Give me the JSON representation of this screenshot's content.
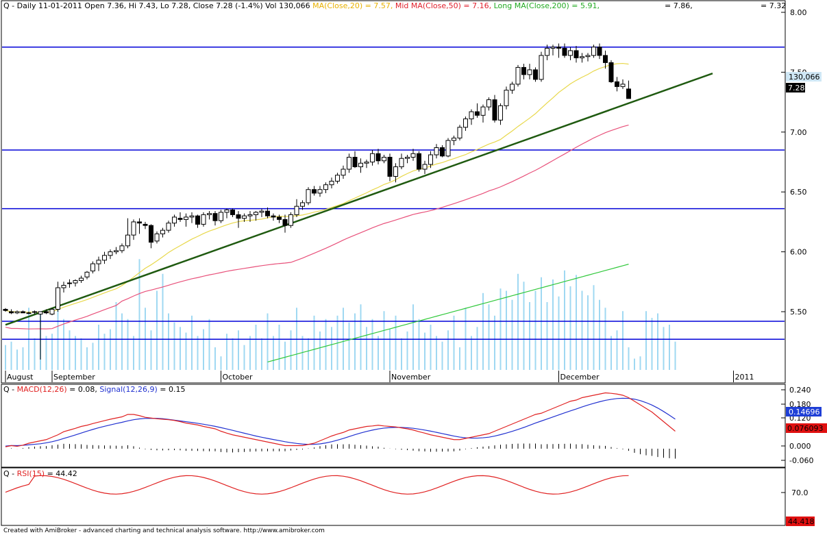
{
  "colors": {
    "price_bg": "#ffffff",
    "candle_up": "#ffffff",
    "candle_down": "#000000",
    "volume": "#9fd8f2",
    "ma20": "#e8d84a",
    "ma50": "#e8507a",
    "ma200": "#2fc83a",
    "trend": "#1f5a10",
    "hline": "#0000d8",
    "macd": "#e02020",
    "signal": "#2030d0",
    "rsi": "#e02020",
    "title_ma": "#e8b100",
    "title_mid": "#e0202c",
    "title_long": "#22aa22",
    "tag_signal_bg": "#1f3fd6",
    "tag_macd_bg": "#e01010",
    "tag_rsi_bg": "#e01010",
    "tag_last_bg": "#000000",
    "tag_vol_bg": "#cfe7f5"
  },
  "header": {
    "main_prefix": "Q - Daily 11-01-2011 Open 7.36, Hi 7.43, Lo 7.28, Close 7.28 (-1.4%) Vol 130,066 ",
    "ma_label": "MA(Close,20) = 7.57,",
    "mid_label": " Mid MA(Close,50) = 7.16,",
    "long_label": " Long MA(Close,200) = 5.91,",
    "mid_value": "= 7.86,",
    "right_value": "= 7.32"
  },
  "macd_header": {
    "prefix": "Q - ",
    "macd_label": "MACD(12,26)",
    "mid": " = 0.08, ",
    "signal_label": "Signal(12,26,9)",
    "suffix": " = 0.15"
  },
  "rsi_header": {
    "prefix": "Q - ",
    "rsi_label": "RSI(15)",
    "suffix": " = 44.42"
  },
  "footer": "Created with AmiBroker - advanced charting and technical analysis software. http://www.amibroker.com",
  "tags": {
    "volume": "130,066",
    "last": "7.28",
    "signal": "0.14696",
    "macd": "0.076093",
    "rsi": "44.418"
  },
  "chart_data": {
    "type": "candlestick",
    "price_axis": {
      "min": 5.0,
      "max": 8.0,
      "ticks": [
        "8.00",
        "7.50",
        "7.00",
        "6.50",
        "6.00",
        "5.50"
      ]
    },
    "month_labels": [
      {
        "label": "August",
        "index": 0
      },
      {
        "label": "September",
        "index": 8
      },
      {
        "label": "October",
        "index": 37
      },
      {
        "label": "November",
        "index": 66
      },
      {
        "label": "December",
        "index": 95
      },
      {
        "label": "2011",
        "index": 125
      }
    ],
    "horizontal_levels": [
      7.71,
      6.85,
      6.36,
      5.42,
      5.27
    ],
    "trendline": {
      "from": [
        0,
        5.39
      ],
      "to": [
        136,
        7.49
      ]
    },
    "candles": [
      [
        5.52,
        5.53,
        5.5,
        5.51
      ],
      [
        5.5,
        5.52,
        5.48,
        5.49
      ],
      [
        5.49,
        5.51,
        5.48,
        5.5
      ],
      [
        5.5,
        5.51,
        5.49,
        5.49
      ],
      [
        5.49,
        5.5,
        5.48,
        5.49
      ],
      [
        5.5,
        5.51,
        5.48,
        5.5
      ],
      [
        5.48,
        5.5,
        5.1,
        5.5
      ],
      [
        5.5,
        5.52,
        5.48,
        5.49
      ],
      [
        5.48,
        5.53,
        5.47,
        5.52
      ],
      [
        5.52,
        5.75,
        5.5,
        5.7
      ],
      [
        5.7,
        5.75,
        5.66,
        5.72
      ],
      [
        5.74,
        5.77,
        5.7,
        5.74
      ],
      [
        5.74,
        5.77,
        5.71,
        5.76
      ],
      [
        5.76,
        5.8,
        5.74,
        5.78
      ],
      [
        5.79,
        5.84,
        5.77,
        5.83
      ],
      [
        5.84,
        5.92,
        5.82,
        5.9
      ],
      [
        5.9,
        5.96,
        5.84,
        5.93
      ],
      [
        5.93,
        6.0,
        5.9,
        5.97
      ],
      [
        5.97,
        6.02,
        5.94,
        6.0
      ],
      [
        6.0,
        6.04,
        5.98,
        6.01
      ],
      [
        6.01,
        6.07,
        5.99,
        6.05
      ],
      [
        6.05,
        6.28,
        6.03,
        6.14
      ],
      [
        6.14,
        6.27,
        6.1,
        6.25
      ],
      [
        6.25,
        6.28,
        6.15,
        6.24
      ],
      [
        6.23,
        6.25,
        6.19,
        6.22
      ],
      [
        6.22,
        6.23,
        6.03,
        6.08
      ],
      [
        6.09,
        6.17,
        6.07,
        6.15
      ],
      [
        6.15,
        6.2,
        6.12,
        6.18
      ],
      [
        6.18,
        6.26,
        6.16,
        6.24
      ],
      [
        6.24,
        6.31,
        6.21,
        6.29
      ],
      [
        6.28,
        6.33,
        6.25,
        6.27
      ],
      [
        6.27,
        6.32,
        6.21,
        6.29
      ],
      [
        6.29,
        6.33,
        6.24,
        6.3
      ],
      [
        6.3,
        6.31,
        6.2,
        6.23
      ],
      [
        6.23,
        6.33,
        6.21,
        6.31
      ],
      [
        6.31,
        6.34,
        6.27,
        6.32
      ],
      [
        6.32,
        6.34,
        6.22,
        6.26
      ],
      [
        6.26,
        6.35,
        6.24,
        6.33
      ],
      [
        6.33,
        6.36,
        6.28,
        6.35
      ],
      [
        6.35,
        6.36,
        6.29,
        6.31
      ],
      [
        6.31,
        6.34,
        6.2,
        6.28
      ],
      [
        6.28,
        6.32,
        6.25,
        6.3
      ],
      [
        6.3,
        6.34,
        6.25,
        6.31
      ],
      [
        6.31,
        6.34,
        6.26,
        6.33
      ],
      [
        6.33,
        6.36,
        6.29,
        6.34
      ],
      [
        6.34,
        6.37,
        6.28,
        6.3
      ],
      [
        6.3,
        6.32,
        6.26,
        6.29
      ],
      [
        6.29,
        6.31,
        6.24,
        6.27
      ],
      [
        6.27,
        6.31,
        6.16,
        6.22
      ],
      [
        6.22,
        6.33,
        6.2,
        6.31
      ],
      [
        6.31,
        6.44,
        6.29,
        6.38
      ],
      [
        6.38,
        6.43,
        6.35,
        6.41
      ],
      [
        6.41,
        6.54,
        6.39,
        6.52
      ],
      [
        6.52,
        6.55,
        6.47,
        6.49
      ],
      [
        6.49,
        6.55,
        6.46,
        6.52
      ],
      [
        6.52,
        6.58,
        6.49,
        6.56
      ],
      [
        6.56,
        6.62,
        6.53,
        6.59
      ],
      [
        6.59,
        6.66,
        6.57,
        6.64
      ],
      [
        6.64,
        6.72,
        6.61,
        6.69
      ],
      [
        6.69,
        6.82,
        6.66,
        6.79
      ],
      [
        6.79,
        6.84,
        6.7,
        6.71
      ],
      [
        6.71,
        6.78,
        6.66,
        6.74
      ],
      [
        6.74,
        6.77,
        6.7,
        6.75
      ],
      [
        6.75,
        6.85,
        6.72,
        6.82
      ],
      [
        6.82,
        6.86,
        6.73,
        6.76
      ],
      [
        6.76,
        6.81,
        6.74,
        6.79
      ],
      [
        6.79,
        6.82,
        6.59,
        6.63
      ],
      [
        6.63,
        6.74,
        6.58,
        6.71
      ],
      [
        6.71,
        6.82,
        6.69,
        6.78
      ],
      [
        6.78,
        6.81,
        6.74,
        6.79
      ],
      [
        6.79,
        6.86,
        6.76,
        6.82
      ],
      [
        6.82,
        6.84,
        6.67,
        6.69
      ],
      [
        6.69,
        6.76,
        6.65,
        6.73
      ],
      [
        6.73,
        6.84,
        6.7,
        6.81
      ],
      [
        6.81,
        6.9,
        6.78,
        6.87
      ],
      [
        6.87,
        6.89,
        6.79,
        6.8
      ],
      [
        6.8,
        6.95,
        6.79,
        6.93
      ],
      [
        6.93,
        6.97,
        6.89,
        6.95
      ],
      [
        6.95,
        7.06,
        6.93,
        7.04
      ],
      [
        7.04,
        7.13,
        7.01,
        7.11
      ],
      [
        7.11,
        7.19,
        7.06,
        7.17
      ],
      [
        7.17,
        7.24,
        7.12,
        7.14
      ],
      [
        7.14,
        7.23,
        7.08,
        7.21
      ],
      [
        7.21,
        7.29,
        7.18,
        7.27
      ],
      [
        7.27,
        7.31,
        7.08,
        7.1
      ],
      [
        7.1,
        7.24,
        7.06,
        7.22
      ],
      [
        7.22,
        7.38,
        7.19,
        7.35
      ],
      [
        7.35,
        7.42,
        7.32,
        7.4
      ],
      [
        7.4,
        7.56,
        7.38,
        7.54
      ],
      [
        7.54,
        7.57,
        7.44,
        7.48
      ],
      [
        7.48,
        7.57,
        7.44,
        7.52
      ],
      [
        7.52,
        7.54,
        7.42,
        7.44
      ],
      [
        7.44,
        7.67,
        7.42,
        7.64
      ],
      [
        7.64,
        7.73,
        7.6,
        7.7
      ],
      [
        7.7,
        7.73,
        7.64,
        7.71
      ],
      [
        7.71,
        7.74,
        7.62,
        7.7
      ],
      [
        7.7,
        7.74,
        7.62,
        7.64
      ],
      [
        7.64,
        7.71,
        7.6,
        7.68
      ],
      [
        7.68,
        7.72,
        7.58,
        7.62
      ],
      [
        7.62,
        7.66,
        7.58,
        7.63
      ],
      [
        7.63,
        7.66,
        7.59,
        7.64
      ],
      [
        7.64,
        7.73,
        7.62,
        7.71
      ],
      [
        7.71,
        7.74,
        7.61,
        7.64
      ],
      [
        7.64,
        7.68,
        7.53,
        7.58
      ],
      [
        7.58,
        7.6,
        7.41,
        7.42
      ],
      [
        7.42,
        7.46,
        7.34,
        7.38
      ],
      [
        7.38,
        7.44,
        7.36,
        7.4
      ],
      [
        7.36,
        7.43,
        7.28,
        7.28
      ]
    ],
    "volume_levels": [
      0.22,
      0.25,
      0.18,
      0.2,
      0.55,
      0.28,
      0.52,
      0.3,
      0.32,
      0.58,
      0.45,
      0.35,
      0.3,
      0.28,
      0.2,
      0.24,
      0.4,
      0.32,
      0.36,
      0.6,
      0.5,
      0.45,
      0.3,
      0.98,
      0.55,
      0.35,
      0.7,
      0.85,
      0.5,
      0.42,
      0.38,
      0.33,
      0.48,
      0.3,
      0.36,
      0.45,
      0.2,
      0.12,
      0.32,
      0.28,
      0.35,
      0.22,
      0.3,
      0.4,
      0.28,
      0.5,
      0.3,
      0.4,
      0.25,
      0.35,
      0.55,
      0.3,
      0.28,
      0.48,
      0.34,
      0.45,
      0.38,
      0.48,
      0.55,
      0.42,
      0.5,
      0.58,
      0.38,
      0.45,
      0.3,
      0.52,
      0.36,
      0.48,
      0.28,
      0.34,
      0.58,
      0.45,
      0.33,
      0.4,
      0.3,
      0.25,
      0.35,
      0.48,
      0.2,
      0.55,
      0.3,
      0.38,
      0.68,
      0.58,
      0.48,
      0.72,
      0.7,
      0.62,
      0.85,
      0.78,
      0.6,
      0.7,
      0.82,
      0.6,
      0.8,
      0.65,
      0.88,
      0.74,
      0.84,
      0.7,
      0.66,
      0.75,
      0.62,
      0.55,
      0.3,
      0.35,
      0.52,
      0.2,
      0.1,
      0.12,
      0.52,
      0.46,
      0.5,
      0.38,
      0.4,
      0.25
    ],
    "macd_levels": [
      -0.35,
      -0.3,
      -0.33,
      -0.28,
      -0.2,
      -0.15,
      -0.1,
      -0.05,
      0.05,
      0.15,
      0.28,
      0.35,
      0.42,
      0.5,
      0.55,
      0.62,
      0.68,
      0.74,
      0.8,
      0.85,
      0.9,
      1.0,
      1.0,
      0.95,
      0.88,
      0.85,
      0.82,
      0.8,
      0.78,
      0.75,
      0.7,
      0.64,
      0.6,
      0.56,
      0.5,
      0.45,
      0.4,
      0.3,
      0.22,
      0.15,
      0.1,
      0.05,
      0.0,
      -0.05,
      -0.1,
      -0.15,
      -0.2,
      -0.25,
      -0.3,
      -0.3,
      -0.3,
      -0.3,
      -0.25,
      -0.2,
      -0.1,
      0.0,
      0.1,
      0.18,
      0.25,
      0.35,
      0.4,
      0.45,
      0.5,
      0.52,
      0.55,
      0.52,
      0.5,
      0.48,
      0.44,
      0.4,
      0.35,
      0.28,
      0.22,
      0.15,
      0.1,
      0.05,
      0.0,
      -0.05,
      -0.05,
      0.0,
      0.05,
      0.1,
      0.15,
      0.2,
      0.3,
      0.4,
      0.5,
      0.6,
      0.7,
      0.8,
      0.9,
      1.0,
      1.05,
      1.15,
      1.25,
      1.35,
      1.45,
      1.55,
      1.6,
      1.7,
      1.75,
      1.8,
      1.85,
      1.9,
      1.88,
      1.85,
      1.8,
      1.7,
      1.55,
      1.4,
      1.25,
      1.1,
      0.9,
      0.7,
      0.5,
      0.3
    ]
  }
}
